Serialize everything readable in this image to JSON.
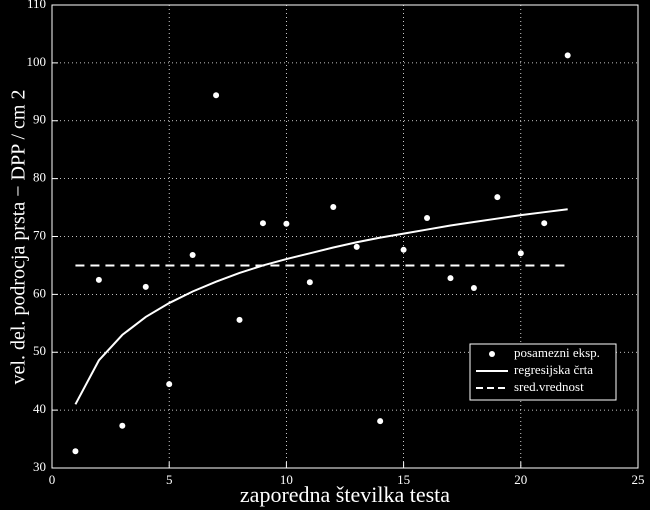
{
  "chart_data": {
    "type": "scatter",
    "xlabel": "zaporedna številka testa",
    "ylabel": "vel. del. podrocja prsta − DPP / cm 2",
    "xlim": [
      0,
      25
    ],
    "xticks": [
      0,
      5,
      10,
      15,
      20,
      25
    ],
    "ylim": [
      30,
      110
    ],
    "yticks": [
      30,
      40,
      50,
      60,
      70,
      80,
      90,
      100,
      110
    ],
    "grid": true,
    "legend": "lower right",
    "series": [
      {
        "name": "posamezni eksp.",
        "type": "scatter",
        "color": "#ffffff",
        "x": [
          1,
          2,
          3,
          4,
          5,
          6,
          7,
          8,
          9,
          10,
          11,
          12,
          13,
          14,
          15,
          16,
          17,
          18,
          19,
          20,
          21,
          22
        ],
        "values": [
          32.9,
          62.5,
          37.3,
          61.3,
          44.5,
          66.8,
          94.4,
          55.6,
          72.3,
          72.2,
          62.1,
          75.1,
          68.2,
          38.1,
          67.7,
          73.2,
          62.8,
          61.1,
          76.8,
          67.1,
          72.3,
          101.3
        ]
      },
      {
        "name": "regresijska črta",
        "type": "line",
        "color": "#ffffff",
        "dashed": false,
        "x": [
          1,
          2,
          3,
          4,
          5,
          6,
          7,
          8,
          9,
          10,
          11,
          12,
          13,
          14,
          15,
          16,
          17,
          18,
          19,
          20,
          21,
          22
        ],
        "values": [
          41.0,
          48.6,
          53.0,
          56.1,
          58.5,
          60.5,
          62.2,
          63.7,
          65.0,
          66.1,
          67.1,
          68.1,
          69.0,
          69.8,
          70.5,
          71.2,
          71.9,
          72.5,
          73.1,
          73.7,
          74.2,
          74.7
        ]
      },
      {
        "name": "sred.vrednost",
        "type": "line",
        "color": "#ffffff",
        "dashed": true,
        "x": [
          1,
          22
        ],
        "values": [
          65,
          65
        ]
      }
    ]
  }
}
